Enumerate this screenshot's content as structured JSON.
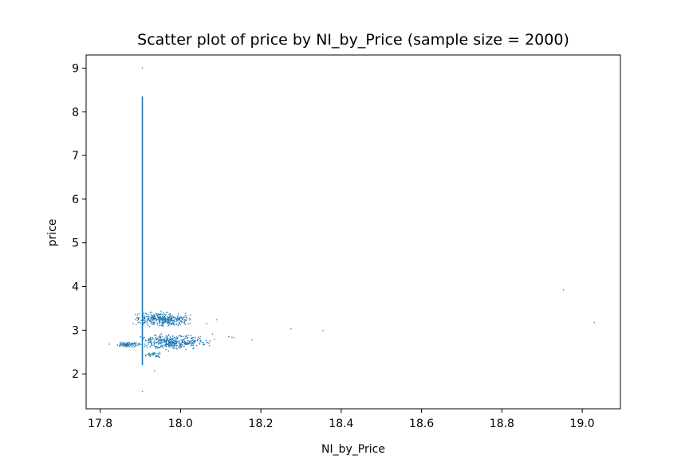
{
  "chart_data": {
    "type": "scatter",
    "title": "Scatter plot of price by NI_by_Price (sample size = 2000)",
    "xlabel": "NI_by_Price",
    "ylabel": "price",
    "xlim": [
      17.765,
      19.095
    ],
    "ylim": [
      1.2,
      9.3
    ],
    "xticks": [
      17.8,
      18.0,
      18.2,
      18.4,
      18.6,
      18.8,
      19.0
    ],
    "xtick_labels": [
      "17.8",
      "18.0",
      "18.2",
      "18.4",
      "18.6",
      "18.8",
      "19.0"
    ],
    "yticks": [
      2,
      3,
      4,
      5,
      6,
      7,
      8,
      9
    ],
    "ytick_labels": [
      "2",
      "3",
      "4",
      "5",
      "6",
      "7",
      "8",
      "9"
    ],
    "grid": false,
    "sample_size": 2000,
    "marker_color": "#1f77b4",
    "series": [
      {
        "points": [
          [
            17.905,
            9.0
          ],
          [
            17.905,
            1.6
          ],
          [
            17.935,
            2.07
          ],
          [
            18.953,
            3.92
          ],
          [
            19.03,
            3.18
          ],
          [
            18.275,
            3.03
          ],
          [
            18.355,
            2.99
          ],
          [
            18.178,
            2.78
          ],
          [
            18.128,
            2.84
          ],
          [
            18.133,
            2.83
          ],
          [
            18.12,
            2.85
          ],
          [
            18.09,
            3.24
          ],
          [
            18.065,
            3.15
          ],
          [
            17.823,
            2.68
          ],
          [
            18.08,
            2.91
          ]
        ],
        "vertical_line": {
          "x": 17.905,
          "y_from": 2.2,
          "y_to": 8.35
        },
        "clusters": [
          {
            "x_from": 17.88,
            "x_to": 18.03,
            "y_from": 3.05,
            "y_to": 3.45,
            "count": 380
          },
          {
            "x_from": 17.89,
            "x_to": 18.05,
            "y_from": 2.5,
            "y_to": 2.95,
            "count": 360
          },
          {
            "x_from": 17.84,
            "x_to": 17.9,
            "y_from": 2.6,
            "y_to": 2.75,
            "count": 90
          },
          {
            "x_from": 18.0,
            "x_to": 18.09,
            "y_from": 2.6,
            "y_to": 2.9,
            "count": 45
          },
          {
            "x_from": 17.9,
            "x_to": 17.96,
            "y_from": 2.35,
            "y_to": 2.55,
            "count": 35
          }
        ]
      }
    ]
  }
}
